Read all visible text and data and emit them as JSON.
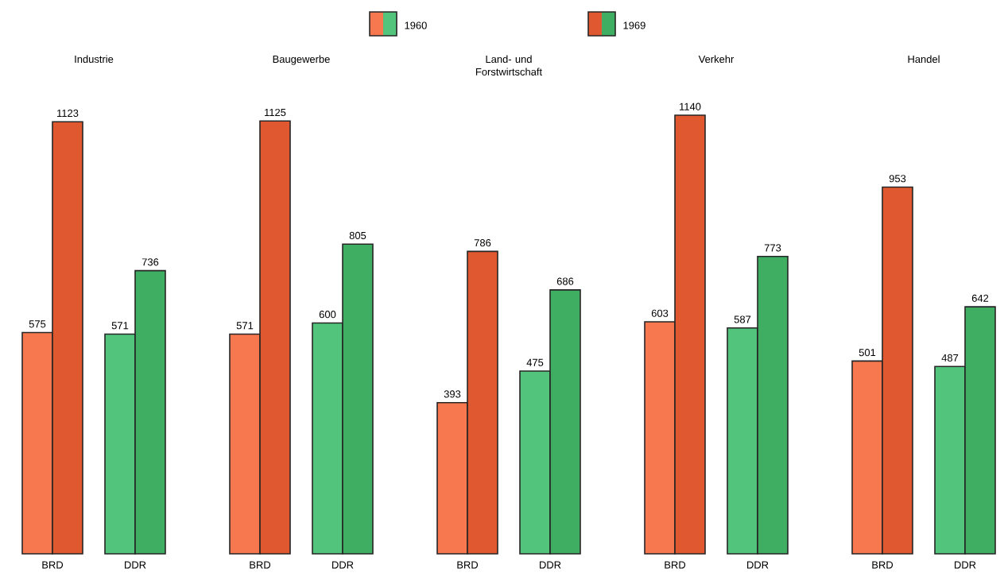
{
  "chart_data": [
    {
      "type": "bar",
      "title": "Industrie",
      "categories": [
        "BRD",
        "DDR"
      ],
      "data_labels": true,
      "legend": "top",
      "series": [
        {
          "name": "1960",
          "colors": [
            "#f7774f",
            "#52c47c"
          ],
          "values": [
            575,
            571
          ]
        },
        {
          "name": "1969",
          "colors": [
            "#e0582f",
            "#3fae62"
          ],
          "values": [
            1123,
            736
          ]
        }
      ]
    },
    {
      "type": "bar",
      "title": "Baugewerbe",
      "categories": [
        "BRD",
        "DDR"
      ],
      "data_labels": true,
      "series": [
        {
          "colors": [
            "#f7774f",
            "#52c47c"
          ],
          "values": [
            571,
            600
          ]
        },
        {
          "colors": [
            "#e0582f",
            "#3fae62"
          ],
          "values": [
            1125,
            805
          ]
        }
      ]
    },
    {
      "type": "bar",
      "title": "Land- und Forstwirtschaft",
      "categories": [
        "BRD",
        "DDR"
      ],
      "data_labels": true,
      "series": [
        {
          "colors": [
            "#f7774f",
            "#52c47c"
          ],
          "values": [
            393,
            475
          ]
        },
        {
          "colors": [
            "#e0582f",
            "#3fae62"
          ],
          "values": [
            786,
            686
          ]
        }
      ]
    },
    {
      "type": "bar",
      "title": "Verkehr",
      "categories": [
        "BRD",
        "DDR"
      ],
      "data_labels": true,
      "series": [
        {
          "colors": [
            "#f7774f",
            "#52c47c"
          ],
          "values": [
            603,
            587
          ]
        },
        {
          "colors": [
            "#e0582f",
            "#3fae62"
          ],
          "values": [
            1140,
            773
          ]
        }
      ]
    },
    {
      "type": "bar",
      "title": "Handel",
      "categories": [
        "BRD",
        "DDR"
      ],
      "data_labels": true,
      "series": [
        {
          "colors": [
            "#f7774f",
            "#52c47c"
          ],
          "values": [
            501,
            487
          ]
        },
        {
          "colors": [
            "#e0582f",
            "#3fae62"
          ],
          "values": [
            953,
            642
          ]
        }
      ]
    }
  ]
}
